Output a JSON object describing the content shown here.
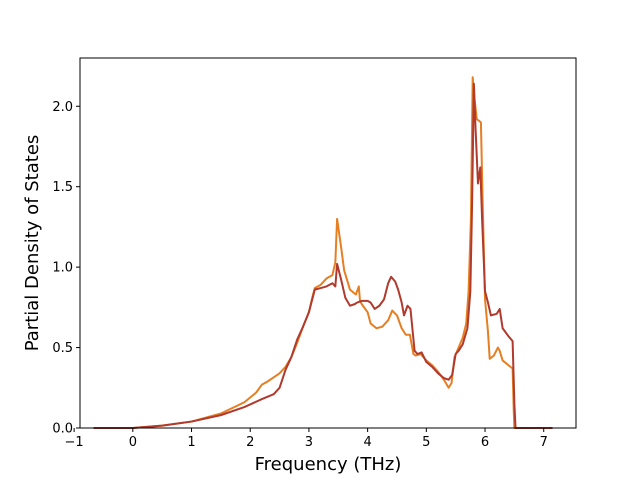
{
  "chart_data": {
    "type": "line",
    "xlabel": "Frequency (THz)",
    "ylabel": "Partial Density of States",
    "xlim": [
      -0.9,
      7.55
    ],
    "ylim": [
      0.0,
      2.3
    ],
    "grid": false,
    "x_ticks": [
      -1,
      0,
      1,
      2,
      3,
      4,
      5,
      6,
      7
    ],
    "y_ticks": [
      0.0,
      0.5,
      1.0,
      1.5,
      2.0
    ],
    "x_tick_labels": [
      "−1",
      "0",
      "1",
      "2",
      "3",
      "4",
      "5",
      "6",
      "7"
    ],
    "y_tick_labels": [
      "0.0",
      "0.5",
      "1.0",
      "1.5",
      "2.0"
    ],
    "series": [
      {
        "color": "#e67e22",
        "points": [
          [
            -0.67,
            0
          ],
          [
            0,
            0
          ],
          [
            0.5,
            0.015
          ],
          [
            1.0,
            0.04
          ],
          [
            1.5,
            0.09
          ],
          [
            1.9,
            0.16
          ],
          [
            2.1,
            0.22
          ],
          [
            2.2,
            0.27
          ],
          [
            2.3,
            0.29
          ],
          [
            2.5,
            0.34
          ],
          [
            2.6,
            0.38
          ],
          [
            2.7,
            0.44
          ],
          [
            2.8,
            0.53
          ],
          [
            2.9,
            0.63
          ],
          [
            3.0,
            0.72
          ],
          [
            3.05,
            0.8
          ],
          [
            3.1,
            0.87
          ],
          [
            3.2,
            0.89
          ],
          [
            3.3,
            0.93
          ],
          [
            3.4,
            0.95
          ],
          [
            3.45,
            1.03
          ],
          [
            3.48,
            1.3
          ],
          [
            3.55,
            1.12
          ],
          [
            3.6,
            0.98
          ],
          [
            3.7,
            0.86
          ],
          [
            3.8,
            0.83
          ],
          [
            3.85,
            0.88
          ],
          [
            3.87,
            0.79
          ],
          [
            3.9,
            0.77
          ],
          [
            4.0,
            0.72
          ],
          [
            4.05,
            0.65
          ],
          [
            4.15,
            0.62
          ],
          [
            4.25,
            0.63
          ],
          [
            4.35,
            0.67
          ],
          [
            4.42,
            0.73
          ],
          [
            4.5,
            0.7
          ],
          [
            4.58,
            0.62
          ],
          [
            4.65,
            0.58
          ],
          [
            4.72,
            0.58
          ],
          [
            4.78,
            0.46
          ],
          [
            4.82,
            0.45
          ],
          [
            4.9,
            0.46
          ],
          [
            5.0,
            0.42
          ],
          [
            5.1,
            0.39
          ],
          [
            5.2,
            0.35
          ],
          [
            5.3,
            0.3
          ],
          [
            5.38,
            0.25
          ],
          [
            5.43,
            0.28
          ],
          [
            5.48,
            0.44
          ],
          [
            5.55,
            0.5
          ],
          [
            5.62,
            0.56
          ],
          [
            5.68,
            0.65
          ],
          [
            5.72,
            0.85
          ],
          [
            5.76,
            1.3
          ],
          [
            5.79,
            2.18
          ],
          [
            5.82,
            2.05
          ],
          [
            5.86,
            1.92
          ],
          [
            5.93,
            1.9
          ],
          [
            5.96,
            1.4
          ],
          [
            6.0,
            0.8
          ],
          [
            6.05,
            0.6
          ],
          [
            6.08,
            0.43
          ],
          [
            6.15,
            0.45
          ],
          [
            6.22,
            0.5
          ],
          [
            6.25,
            0.48
          ],
          [
            6.3,
            0.42
          ],
          [
            6.4,
            0.39
          ],
          [
            6.47,
            0.37
          ],
          [
            6.49,
            0.1
          ],
          [
            6.5,
            0
          ],
          [
            7.15,
            0
          ]
        ]
      },
      {
        "color": "#b03a2e",
        "points": [
          [
            -0.67,
            0
          ],
          [
            0,
            0
          ],
          [
            0.5,
            0.015
          ],
          [
            1.0,
            0.04
          ],
          [
            1.5,
            0.08
          ],
          [
            1.9,
            0.13
          ],
          [
            2.2,
            0.18
          ],
          [
            2.4,
            0.21
          ],
          [
            2.5,
            0.25
          ],
          [
            2.6,
            0.36
          ],
          [
            2.7,
            0.44
          ],
          [
            2.8,
            0.55
          ],
          [
            2.9,
            0.63
          ],
          [
            3.0,
            0.72
          ],
          [
            3.05,
            0.79
          ],
          [
            3.1,
            0.86
          ],
          [
            3.2,
            0.87
          ],
          [
            3.3,
            0.88
          ],
          [
            3.4,
            0.9
          ],
          [
            3.45,
            0.88
          ],
          [
            3.48,
            1.02
          ],
          [
            3.55,
            0.92
          ],
          [
            3.62,
            0.81
          ],
          [
            3.7,
            0.76
          ],
          [
            3.78,
            0.77
          ],
          [
            3.82,
            0.78
          ],
          [
            3.9,
            0.79
          ],
          [
            4.0,
            0.79
          ],
          [
            4.05,
            0.78
          ],
          [
            4.12,
            0.74
          ],
          [
            4.2,
            0.76
          ],
          [
            4.28,
            0.8
          ],
          [
            4.35,
            0.9
          ],
          [
            4.4,
            0.94
          ],
          [
            4.47,
            0.91
          ],
          [
            4.52,
            0.86
          ],
          [
            4.58,
            0.78
          ],
          [
            4.62,
            0.7
          ],
          [
            4.68,
            0.76
          ],
          [
            4.73,
            0.74
          ],
          [
            4.8,
            0.48
          ],
          [
            4.85,
            0.46
          ],
          [
            4.92,
            0.47
          ],
          [
            5.0,
            0.41
          ],
          [
            5.1,
            0.38
          ],
          [
            5.2,
            0.34
          ],
          [
            5.3,
            0.31
          ],
          [
            5.38,
            0.3
          ],
          [
            5.44,
            0.33
          ],
          [
            5.5,
            0.46
          ],
          [
            5.55,
            0.48
          ],
          [
            5.62,
            0.52
          ],
          [
            5.7,
            0.62
          ],
          [
            5.75,
            0.85
          ],
          [
            5.78,
            1.4
          ],
          [
            5.81,
            2.14
          ],
          [
            5.84,
            1.85
          ],
          [
            5.88,
            1.52
          ],
          [
            5.92,
            1.62
          ],
          [
            5.95,
            1.3
          ],
          [
            6.0,
            0.85
          ],
          [
            6.05,
            0.78
          ],
          [
            6.1,
            0.7
          ],
          [
            6.2,
            0.71
          ],
          [
            6.25,
            0.74
          ],
          [
            6.3,
            0.62
          ],
          [
            6.4,
            0.57
          ],
          [
            6.47,
            0.54
          ],
          [
            6.5,
            0.15
          ],
          [
            6.52,
            0
          ],
          [
            7.15,
            0
          ]
        ]
      }
    ]
  }
}
